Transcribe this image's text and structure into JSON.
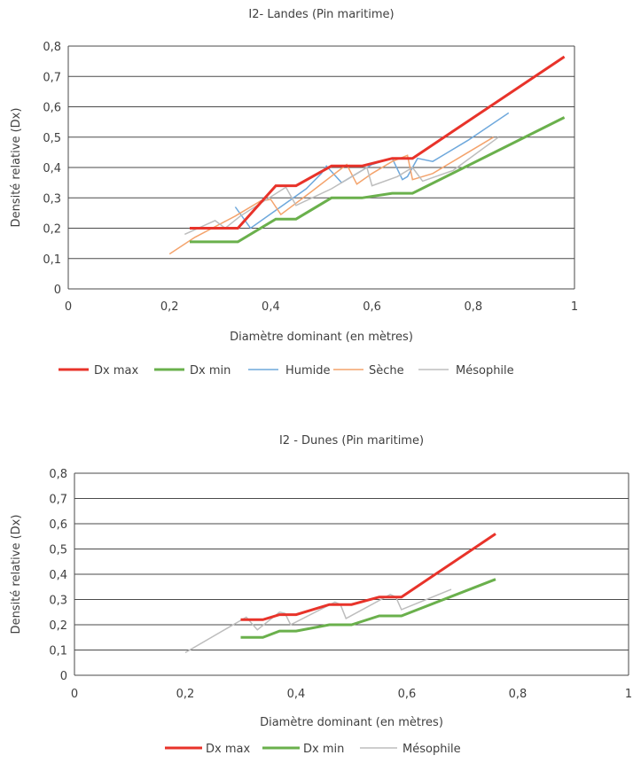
{
  "chart_data": [
    {
      "type": "line",
      "title": "I2- Landes (Pin maritime)",
      "xlabel": "Diamètre dominant (en mètres)",
      "ylabel": "Densité relative (Dx)",
      "xlim": [
        0,
        1
      ],
      "ylim": [
        0,
        0.8
      ],
      "xticks": [
        0,
        0.2,
        0.4,
        0.6,
        0.8,
        1
      ],
      "xtick_labels": [
        "0",
        "0,2",
        "0,4",
        "0,6",
        "0,8",
        "1"
      ],
      "yticks": [
        0,
        0.1,
        0.2,
        0.3,
        0.4,
        0.5,
        0.6,
        0.7,
        0.8
      ],
      "ytick_labels": [
        "0",
        "0,1",
        "0,2",
        "0,3",
        "0,4",
        "0,5",
        "0,6",
        "0,7",
        "0,8"
      ],
      "grid": "horizontal",
      "legend_position": "bottom",
      "series": [
        {
          "name": "Dx max",
          "color": "#e8332a",
          "width": 3,
          "x": [
            0.24,
            0.335,
            0.41,
            0.45,
            0.52,
            0.58,
            0.64,
            0.68,
            0.98
          ],
          "y": [
            0.2,
            0.2,
            0.34,
            0.34,
            0.405,
            0.405,
            0.43,
            0.43,
            0.765
          ]
        },
        {
          "name": "Dx min",
          "color": "#6ab04c",
          "width": 3,
          "x": [
            0.24,
            0.335,
            0.41,
            0.45,
            0.52,
            0.58,
            0.64,
            0.68,
            0.98
          ],
          "y": [
            0.155,
            0.155,
            0.23,
            0.23,
            0.3,
            0.3,
            0.315,
            0.315,
            0.565
          ]
        },
        {
          "name": "Humide",
          "color": "#6ea8dc",
          "width": 1.5,
          "x": [
            0.33,
            0.36,
            0.47,
            0.5,
            0.51,
            0.54,
            0.55,
            0.6,
            0.64,
            0.66,
            0.67,
            0.69,
            0.72,
            0.75,
            0.79,
            0.87
          ],
          "y": [
            0.27,
            0.2,
            0.33,
            0.38,
            0.405,
            0.35,
            0.36,
            0.41,
            0.43,
            0.36,
            0.37,
            0.43,
            0.42,
            0.45,
            0.49,
            0.58
          ]
        },
        {
          "name": "Sèche",
          "color": "#f4a36c",
          "width": 1.5,
          "x": [
            0.2,
            0.25,
            0.33,
            0.38,
            0.4,
            0.42,
            0.48,
            0.55,
            0.57,
            0.6,
            0.64,
            0.67,
            0.68,
            0.72,
            0.77,
            0.84
          ],
          "y": [
            0.115,
            0.17,
            0.24,
            0.29,
            0.295,
            0.245,
            0.32,
            0.41,
            0.345,
            0.38,
            0.42,
            0.44,
            0.36,
            0.38,
            0.43,
            0.5
          ]
        },
        {
          "name": "Mésophile",
          "color": "#bdbdbd",
          "width": 1.5,
          "x": [
            0.23,
            0.29,
            0.31,
            0.34,
            0.43,
            0.45,
            0.52,
            0.59,
            0.6,
            0.65,
            0.68,
            0.7,
            0.76,
            0.85
          ],
          "y": [
            0.18,
            0.225,
            0.2,
            0.24,
            0.335,
            0.275,
            0.33,
            0.4,
            0.34,
            0.37,
            0.4,
            0.355,
            0.39,
            0.5
          ]
        }
      ]
    },
    {
      "type": "line",
      "title": "I2 - Dunes (Pin maritime)",
      "xlabel": "Diamètre dominant (en mètres)",
      "ylabel": "Densité relative (Dx)",
      "xlim": [
        0,
        1
      ],
      "ylim": [
        0,
        0.8
      ],
      "xticks": [
        0,
        0.2,
        0.4,
        0.6,
        0.8,
        1
      ],
      "xtick_labels": [
        "0",
        "0,2",
        "0,4",
        "0,6",
        "0,8",
        "1"
      ],
      "yticks": [
        0,
        0.1,
        0.2,
        0.3,
        0.4,
        0.5,
        0.6,
        0.7,
        0.8
      ],
      "ytick_labels": [
        "0",
        "0,1",
        "0,2",
        "0,3",
        "0,4",
        "0,5",
        "0,6",
        "0,7",
        "0,8"
      ],
      "grid": "horizontal",
      "legend_position": "bottom",
      "series": [
        {
          "name": "Dx max",
          "color": "#e8332a",
          "width": 3,
          "x": [
            0.3,
            0.34,
            0.37,
            0.4,
            0.46,
            0.5,
            0.55,
            0.59,
            0.76
          ],
          "y": [
            0.22,
            0.22,
            0.24,
            0.24,
            0.28,
            0.28,
            0.31,
            0.31,
            0.56
          ]
        },
        {
          "name": "Dx min",
          "color": "#6ab04c",
          "width": 3,
          "x": [
            0.3,
            0.34,
            0.37,
            0.4,
            0.46,
            0.5,
            0.55,
            0.59,
            0.76
          ],
          "y": [
            0.15,
            0.15,
            0.175,
            0.175,
            0.2,
            0.2,
            0.235,
            0.235,
            0.38
          ]
        },
        {
          "name": "Mésophile",
          "color": "#bdbdbd",
          "width": 1.5,
          "x": [
            0.2,
            0.31,
            0.33,
            0.37,
            0.38,
            0.39,
            0.47,
            0.48,
            0.49,
            0.57,
            0.58,
            0.59,
            0.68
          ],
          "y": [
            0.09,
            0.23,
            0.18,
            0.25,
            0.245,
            0.2,
            0.29,
            0.28,
            0.225,
            0.32,
            0.31,
            0.26,
            0.34
          ]
        }
      ]
    }
  ]
}
